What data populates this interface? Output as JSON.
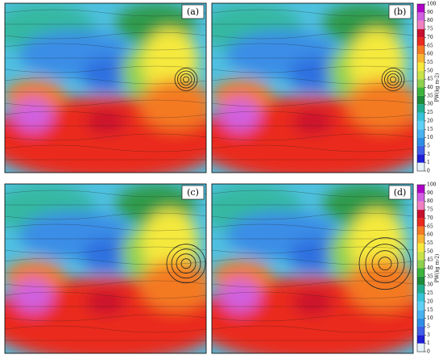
{
  "panels": [
    {
      "label": "(a)"
    },
    {
      "label": "(b)"
    },
    {
      "label": "(c)"
    },
    {
      "label": "(d)"
    }
  ],
  "colorbar": {
    "label": "PW(kg m-2)",
    "ticks": [
      0,
      1,
      3,
      5,
      10,
      15,
      20,
      25,
      30,
      35,
      40,
      45,
      50,
      55,
      60,
      65,
      70,
      75,
      80,
      90,
      100
    ],
    "colors": [
      "#e6f2f7",
      "#1f1fd6",
      "#3f5fe8",
      "#2f8fe6",
      "#49b2f0",
      "#5fd0f5",
      "#36c3d9",
      "#1fae8f",
      "#1d8c3a",
      "#3cb43c",
      "#8fd14f",
      "#c8e34a",
      "#f5e93c",
      "#f7b531",
      "#f47a24",
      "#ea2b1f",
      "#c8102e",
      "#f080c0",
      "#d060e0",
      "#b000c8"
    ]
  }
}
